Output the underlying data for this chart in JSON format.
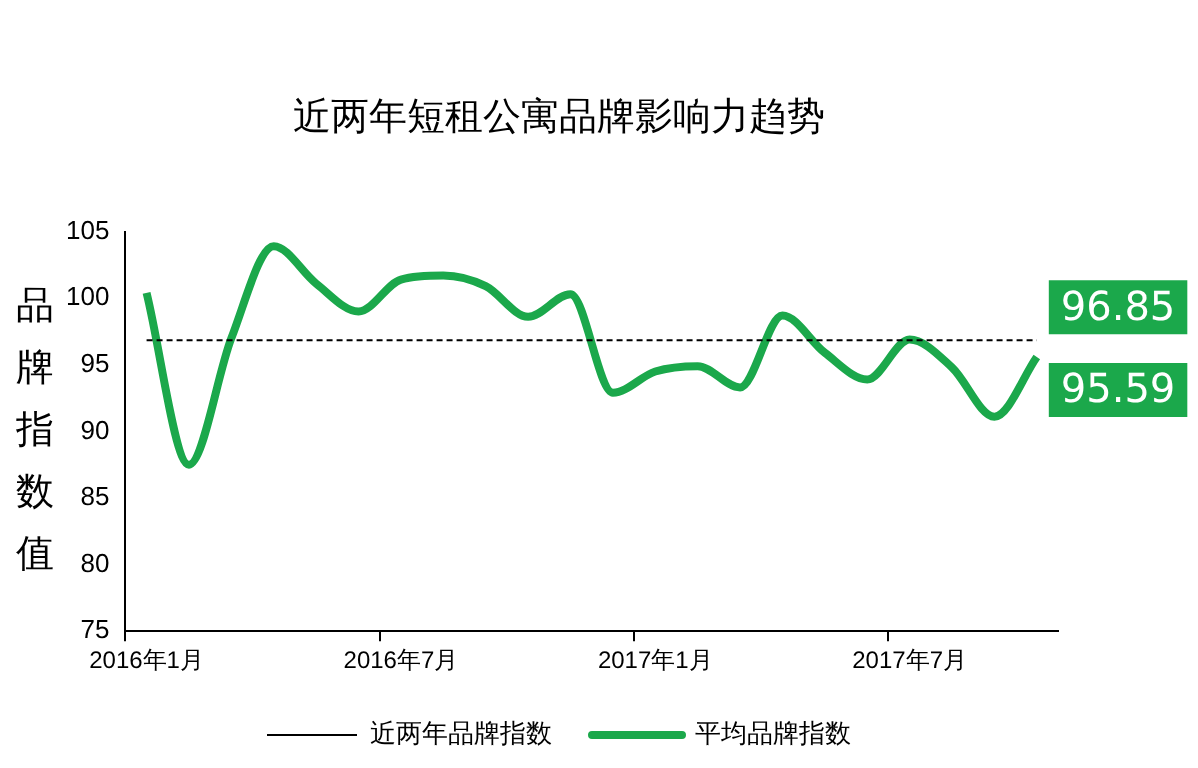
{
  "chart_data": {
    "type": "line",
    "title": "近两年短租公寓品牌影响力趋势",
    "ylabel": "品牌指数值",
    "categories": [
      "2016年1月",
      null,
      null,
      null,
      null,
      null,
      "2016年7月",
      null,
      null,
      null,
      null,
      null,
      "2017年1月",
      null,
      null,
      null,
      null,
      null,
      "2017年7月",
      null,
      null,
      null
    ],
    "series": [
      {
        "name": "近两年品牌指数",
        "color": "#000000",
        "line_style": "dashed",
        "values": [
          96.85,
          96.85,
          96.85,
          96.85,
          96.85,
          96.85,
          96.85,
          96.85,
          96.85,
          96.85,
          96.85,
          96.85,
          96.85,
          96.85,
          96.85,
          96.85,
          96.85,
          96.85,
          96.85,
          96.85,
          96.85,
          96.85
        ],
        "value_labels": [
          null,
          null,
          null,
          null,
          null,
          null,
          null,
          null,
          null,
          null,
          null,
          null,
          null,
          null,
          null,
          null,
          null,
          null,
          null,
          null,
          null,
          "96.85"
        ]
      },
      {
        "name": "平均品牌指数",
        "color": "#1ba84b",
        "line_style": "solid",
        "values": [
          100.4,
          87.5,
          97,
          103.9,
          101.1,
          99,
          101.4,
          101.7,
          100.9,
          98.6,
          100.3,
          92.9,
          94.5,
          94.9,
          93.3,
          98.7,
          95.9,
          93.9,
          96.9,
          94.8,
          91.1,
          95.59
        ],
        "value_labels": [
          null,
          null,
          null,
          null,
          null,
          null,
          null,
          null,
          null,
          null,
          null,
          null,
          null,
          null,
          null,
          null,
          null,
          null,
          null,
          null,
          null,
          "95.59"
        ]
      }
    ],
    "ylim": [
      75,
      105
    ],
    "yticks": [
      75,
      80,
      85,
      90,
      95,
      100,
      105
    ],
    "grid": false,
    "legend": "bottom",
    "marker": "none"
  }
}
